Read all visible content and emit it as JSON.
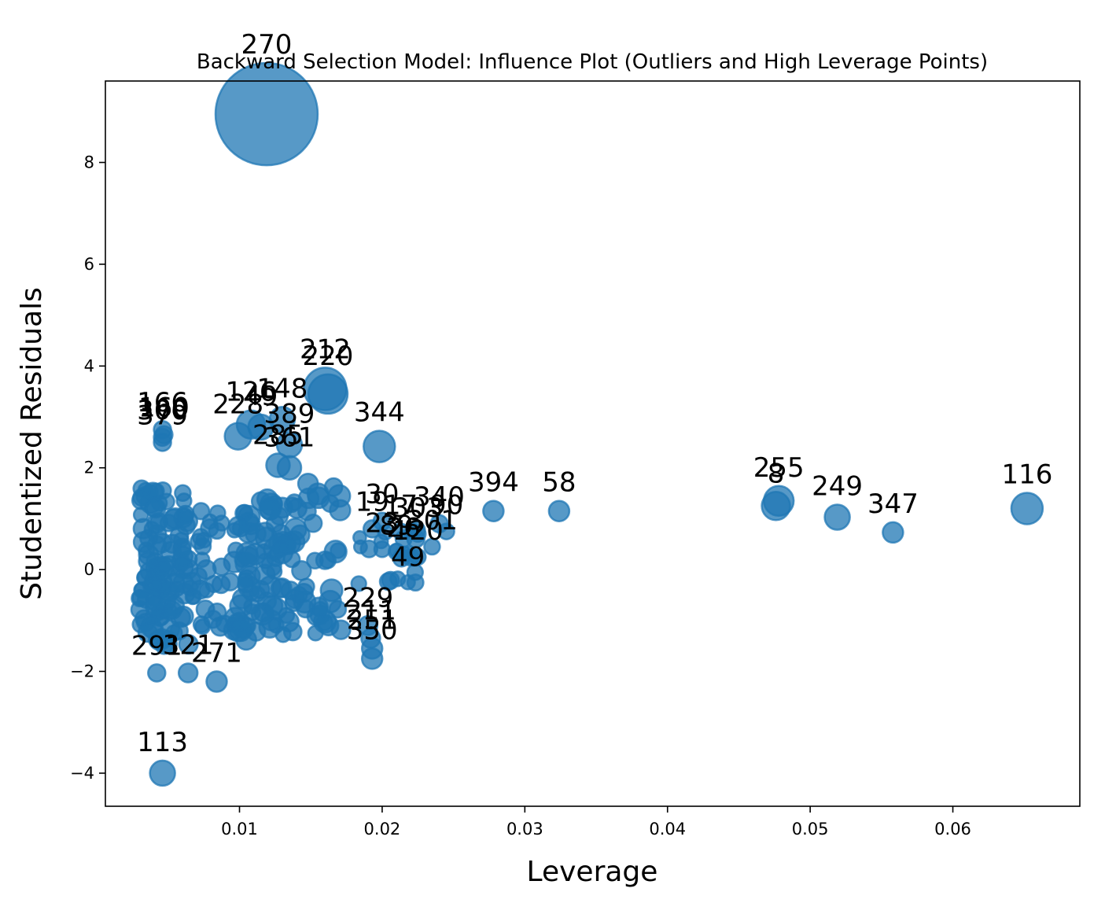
{
  "chart_data": {
    "type": "scatter",
    "title": "Backward Selection Model: Influence Plot (Outliers and High Leverage Points)",
    "xlabel": "Leverage",
    "ylabel": "Studentized Residuals",
    "xlim": [
      0.0006,
      0.0689
    ],
    "ylim": [
      -4.65,
      9.6
    ],
    "xticks": [
      0.01,
      0.02,
      0.03,
      0.04,
      0.05,
      0.06
    ],
    "xtick_labels": [
      "0.01",
      "0.02",
      "0.03",
      "0.04",
      "0.05",
      "0.06"
    ],
    "yticks": [
      -4,
      -2,
      0,
      2,
      4,
      6,
      8
    ],
    "ytick_labels": [
      "−4",
      "−2",
      "0",
      "2",
      "4",
      "6",
      "8"
    ],
    "color": "#1f77b4",
    "size_note": "marker area proportional to Cook's distance",
    "labeled_points": [
      {
        "label": "270",
        "x": 0.0119,
        "y": 8.95,
        "size": 65
      },
      {
        "label": "212",
        "x": 0.016,
        "y": 3.55,
        "size": 27
      },
      {
        "label": "220",
        "x": 0.0162,
        "y": 3.45,
        "size": 25
      },
      {
        "label": "166",
        "x": 0.0046,
        "y": 2.75,
        "size": 11
      },
      {
        "label": "160",
        "x": 0.0047,
        "y": 2.65,
        "size": 11
      },
      {
        "label": "300",
        "x": 0.0046,
        "y": 2.6,
        "size": 11
      },
      {
        "label": "379",
        "x": 0.0046,
        "y": 2.5,
        "size": 11
      },
      {
        "label": "228",
        "x": 0.0099,
        "y": 2.62,
        "size": 17
      },
      {
        "label": "126",
        "x": 0.0108,
        "y": 2.85,
        "size": 18
      },
      {
        "label": "49",
        "x": 0.0115,
        "y": 2.8,
        "size": 16
      },
      {
        "label": "148",
        "x": 0.013,
        "y": 2.95,
        "size": 16
      },
      {
        "label": "389",
        "x": 0.0135,
        "y": 2.45,
        "size": 16
      },
      {
        "label": "285",
        "x": 0.0127,
        "y": 2.05,
        "size": 15
      },
      {
        "label": "361",
        "x": 0.0135,
        "y": 2.0,
        "size": 15
      },
      {
        "label": "344",
        "x": 0.0198,
        "y": 2.42,
        "size": 20
      },
      {
        "label": "19",
        "x": 0.0193,
        "y": 0.8,
        "size": 11
      },
      {
        "label": "30",
        "x": 0.02,
        "y": 0.95,
        "size": 11
      },
      {
        "label": "17",
        "x": 0.0213,
        "y": 0.75,
        "size": 10
      },
      {
        "label": "303",
        "x": 0.0225,
        "y": 0.7,
        "size": 10
      },
      {
        "label": "340",
        "x": 0.024,
        "y": 0.9,
        "size": 11
      },
      {
        "label": "90",
        "x": 0.0245,
        "y": 0.75,
        "size": 10
      },
      {
        "label": "301",
        "x": 0.0235,
        "y": 0.45,
        "size": 10
      },
      {
        "label": "23",
        "x": 0.02,
        "y": 0.4,
        "size": 10
      },
      {
        "label": "89",
        "x": 0.021,
        "y": 0.35,
        "size": 10
      },
      {
        "label": "26",
        "x": 0.0215,
        "y": 0.3,
        "size": 10
      },
      {
        "label": "120",
        "x": 0.0225,
        "y": 0.25,
        "size": 10
      },
      {
        "label": "49",
        "x": 0.0218,
        "y": -0.25,
        "size": 9
      },
      {
        "label": "394",
        "x": 0.0278,
        "y": 1.15,
        "size": 13
      },
      {
        "label": "58",
        "x": 0.0324,
        "y": 1.15,
        "size": 13
      },
      {
        "label": "8",
        "x": 0.0476,
        "y": 1.25,
        "size": 18
      },
      {
        "label": "255",
        "x": 0.0478,
        "y": 1.35,
        "size": 19
      },
      {
        "label": "249",
        "x": 0.0519,
        "y": 1.03,
        "size": 16
      },
      {
        "label": "347",
        "x": 0.0558,
        "y": 0.73,
        "size": 13
      },
      {
        "label": "116",
        "x": 0.0652,
        "y": 1.2,
        "size": 20
      },
      {
        "label": "229",
        "x": 0.019,
        "y": -1.1,
        "size": 12
      },
      {
        "label": "211",
        "x": 0.0192,
        "y": -1.35,
        "size": 12
      },
      {
        "label": "251",
        "x": 0.0193,
        "y": -1.55,
        "size": 13
      },
      {
        "label": "350",
        "x": 0.0193,
        "y": -1.75,
        "size": 13
      },
      {
        "label": "291",
        "x": 0.0042,
        "y": -2.03,
        "size": 11
      },
      {
        "label": "321",
        "x": 0.0064,
        "y": -2.03,
        "size": 12
      },
      {
        "label": "271",
        "x": 0.0084,
        "y": -2.2,
        "size": 13
      },
      {
        "label": "113",
        "x": 0.0046,
        "y": -4.0,
        "size": 16
      }
    ],
    "point_labels_display": [
      "270",
      "212",
      "220",
      "166",
      "160",
      "300",
      "379",
      "228",
      "126",
      "49",
      "148",
      "389",
      "285",
      "361",
      "344",
      "19",
      "30",
      "17",
      "303",
      "340",
      "90",
      "301",
      "23",
      "89",
      "26",
      "120",
      "49",
      "394",
      "58",
      "8",
      "255",
      "249",
      "347",
      "116",
      "229",
      "211",
      "251",
      "350",
      "291",
      "321",
      "271",
      "113"
    ]
  }
}
